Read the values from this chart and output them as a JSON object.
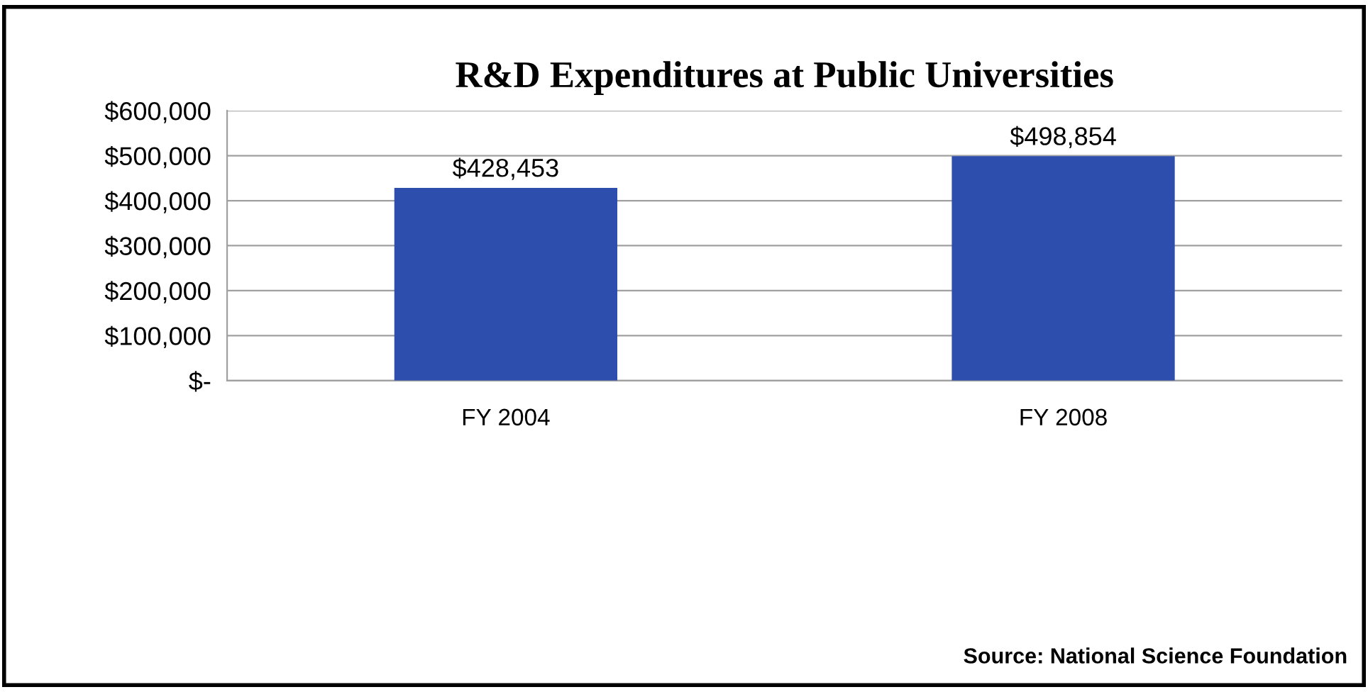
{
  "chart_data": {
    "type": "bar",
    "title": "R&D Expenditures at Public Universities",
    "categories": [
      "FY 2004",
      "FY 2008"
    ],
    "values": [
      428453,
      498854
    ],
    "value_labels": [
      "$428,453",
      "$498,854"
    ],
    "color": "#2e4ead",
    "ylim": [
      0,
      600000
    ],
    "yticks": [
      {
        "value": 0,
        "label": "$-"
      },
      {
        "value": 100000,
        "label": "$100,000"
      },
      {
        "value": 200000,
        "label": "$200,000"
      },
      {
        "value": 300000,
        "label": "$300,000"
      },
      {
        "value": 400000,
        "label": "$400,000"
      },
      {
        "value": 500000,
        "label": "$500,000"
      },
      {
        "value": 600000,
        "label": "$600,000"
      }
    ],
    "grid": "y",
    "annotations": [
      "Source: National Science Foundation"
    ]
  }
}
